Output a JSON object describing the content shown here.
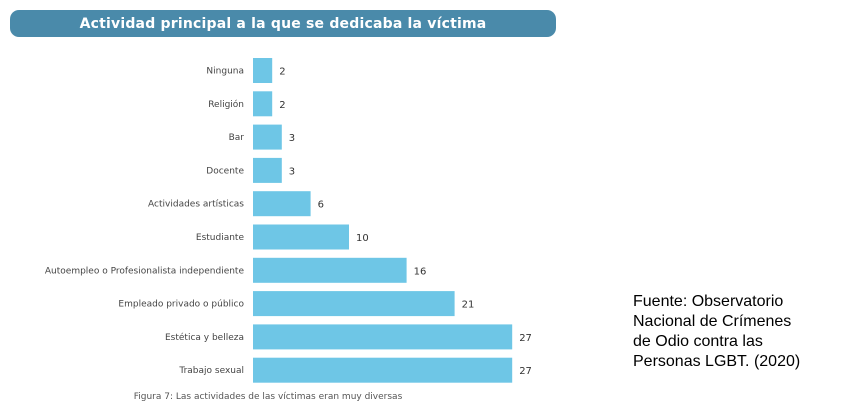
{
  "chart_data": {
    "type": "bar",
    "orientation": "horizontal",
    "title": "Actividad principal a la que se dedicaba la víctima",
    "categories": [
      "Ninguna",
      "Religión",
      "Bar",
      "Docente",
      "Actividades artísticas",
      "Estudiante",
      "Autoempleo o Profesionalista independiente",
      "Empleado privado o público",
      "Estética y belleza",
      "Trabajo sexual"
    ],
    "values": [
      2,
      2,
      3,
      3,
      6,
      10,
      16,
      21,
      27,
      27
    ],
    "xlim": [
      0,
      27
    ],
    "grid": false,
    "legend": false,
    "bar_color": "#6ec6e6"
  },
  "caption": "Figura 7: Las actividades de las víctimas eran muy diversas",
  "source_lines": [
    "Fuente: Observatorio",
    "Nacional de Crímenes",
    "de Odio contra las",
    "Personas LGBT. (2020)"
  ],
  "colors": {
    "title_bar": "#4a8aaa",
    "bar": "#6ec6e6"
  }
}
